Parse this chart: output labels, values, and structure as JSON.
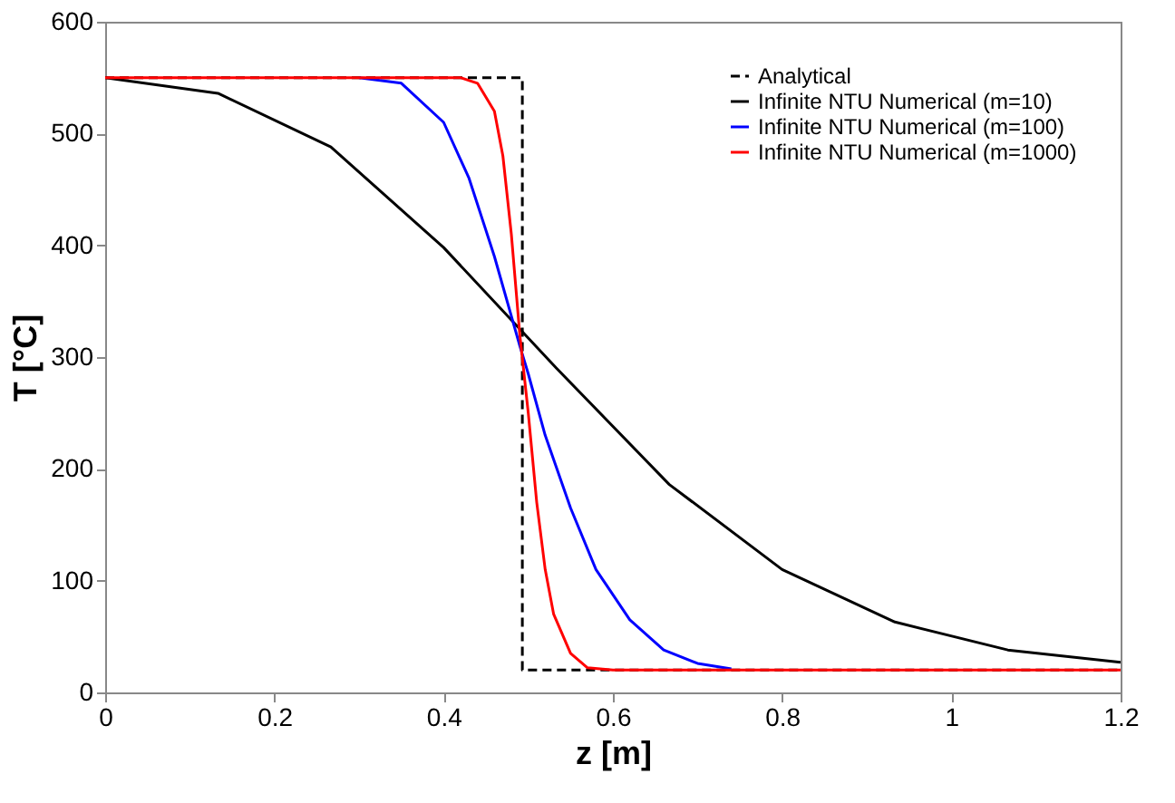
{
  "chart_data": {
    "type": "line",
    "xlabel": "z [m]",
    "ylabel": "T [°C]",
    "xlim": [
      0,
      1.2
    ],
    "ylim": [
      0,
      600
    ],
    "xticks": [
      0,
      0.2,
      0.4,
      0.6,
      0.8,
      1,
      1.2
    ],
    "yticks": [
      0,
      100,
      200,
      300,
      400,
      500,
      600
    ],
    "grid": false,
    "legend": "top right",
    "marker": "none",
    "series": [
      {
        "name": "Analytical",
        "color": "#000000",
        "line_style": "dashed",
        "x": [
          0,
          0.493,
          0.493,
          1.2
        ],
        "values": [
          550,
          550,
          20,
          20
        ]
      },
      {
        "name": "Infinite NTU Numerical (m=10)",
        "color": "#000000",
        "line_style": "solid",
        "x": [
          0,
          0.1333,
          0.2667,
          0.4,
          0.5333,
          0.6667,
          0.8,
          0.9333,
          1.0667,
          1.2
        ],
        "values": [
          550,
          536,
          488,
          398,
          290,
          186,
          110,
          63,
          38,
          27
        ]
      },
      {
        "name": "Infinite NTU Numerical (m=100)",
        "color": "#0000ff",
        "line_style": "solid",
        "x": [
          0.3,
          0.35,
          0.4,
          0.43,
          0.46,
          0.49,
          0.5,
          0.52,
          0.55,
          0.58,
          0.62,
          0.66,
          0.7,
          0.74
        ],
        "values": [
          550,
          545,
          510,
          460,
          390,
          310,
          285,
          230,
          165,
          110,
          65,
          38,
          26,
          21
        ]
      },
      {
        "name": "Infinite NTU Numerical (m=1000)",
        "color": "#ff0000",
        "line_style": "solid",
        "x": [
          0,
          0.42,
          0.44,
          0.46,
          0.47,
          0.48,
          0.49,
          0.5,
          0.51,
          0.52,
          0.53,
          0.55,
          0.57,
          0.6,
          1.2
        ],
        "values": [
          550,
          550,
          545,
          520,
          480,
          410,
          320,
          250,
          170,
          110,
          70,
          35,
          22,
          20,
          20
        ]
      }
    ]
  }
}
